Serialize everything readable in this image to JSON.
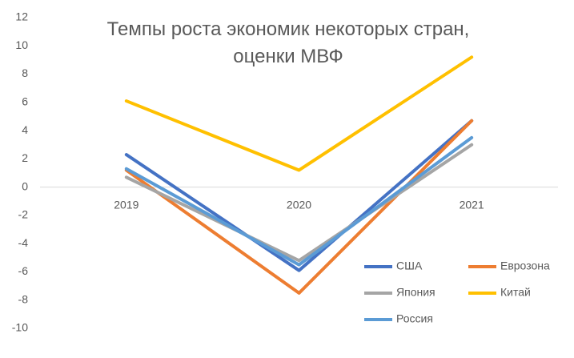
{
  "chart_data": {
    "type": "line",
    "title": "Темпы роста экономик некоторых стран,\nоценки МВФ",
    "categories": [
      "2019",
      "2020",
      "2021"
    ],
    "series": [
      {
        "name": "США",
        "color": "#4472c4",
        "values": [
          2.3,
          -5.9,
          4.7
        ]
      },
      {
        "name": "Еврозона",
        "color": "#ed7d31",
        "values": [
          1.2,
          -7.5,
          4.7
        ]
      },
      {
        "name": "Япония",
        "color": "#a5a5a5",
        "values": [
          0.7,
          -5.2,
          3.0
        ]
      },
      {
        "name": "Китай",
        "color": "#ffc000",
        "values": [
          6.1,
          1.2,
          9.2
        ]
      },
      {
        "name": "Россия",
        "color": "#5b9bd5",
        "values": [
          1.3,
          -5.5,
          3.5
        ]
      }
    ],
    "ylim": [
      -10,
      12
    ],
    "yticks": [
      -10,
      -8,
      -6,
      -4,
      -2,
      0,
      2,
      4,
      6,
      8,
      10,
      12
    ],
    "grid": false,
    "legend": "lower right"
  }
}
